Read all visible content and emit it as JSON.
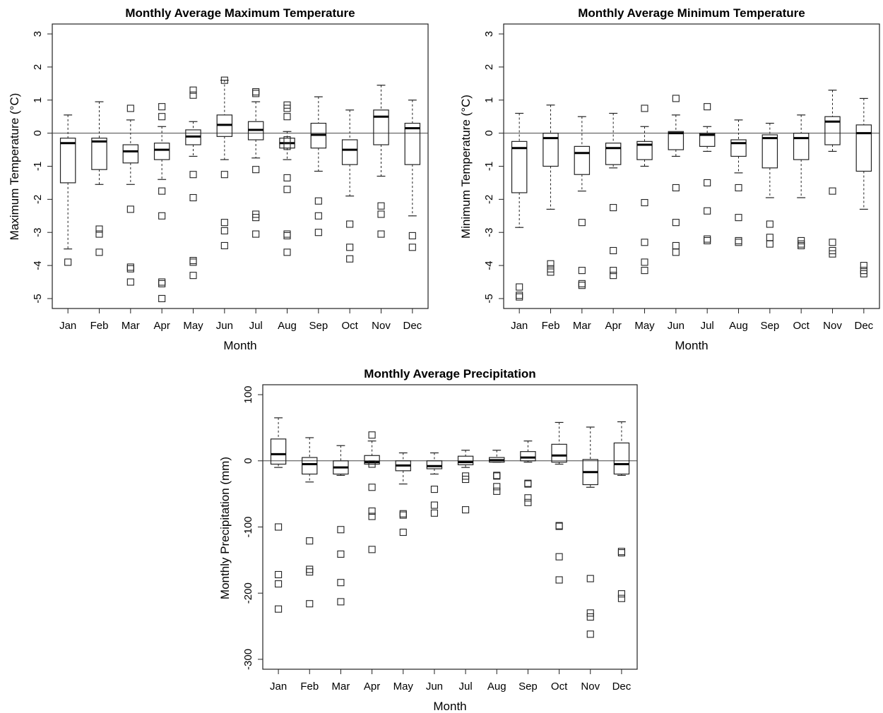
{
  "chart_data": [
    {
      "type": "boxplot",
      "title": "Monthly Average Maximum Temperature",
      "xlabel": "Month",
      "ylabel": "Maximum Temperature (°C)",
      "ylim": [
        -5.3,
        3.3
      ],
      "yticks": [
        3,
        2,
        1,
        0,
        -1,
        -2,
        -3,
        -4,
        -5
      ],
      "reference_line": 0,
      "categories": [
        "Jan",
        "Feb",
        "Mar",
        "Apr",
        "May",
        "Jun",
        "Jul",
        "Aug",
        "Sep",
        "Oct",
        "Nov",
        "Dec"
      ],
      "boxes": [
        {
          "low": -3.5,
          "q1": -1.5,
          "median": -0.3,
          "q3": -0.15,
          "high": 0.55,
          "outliers": [
            -3.9
          ]
        },
        {
          "low": -1.55,
          "q1": -1.1,
          "median": -0.25,
          "q3": -0.15,
          "high": 0.95,
          "outliers": [
            -2.9,
            -3.05,
            -3.6
          ]
        },
        {
          "low": -1.55,
          "q1": -0.9,
          "median": -0.55,
          "q3": -0.35,
          "high": 0.4,
          "outliers": [
            0.75,
            -2.3,
            -4.05,
            -4.1,
            -4.5
          ]
        },
        {
          "low": -1.4,
          "q1": -0.8,
          "median": -0.5,
          "q3": -0.3,
          "high": 0.2,
          "outliers": [
            0.8,
            0.5,
            -1.75,
            -2.5,
            -4.5,
            -4.55,
            -5.0
          ]
        },
        {
          "low": -0.7,
          "q1": -0.35,
          "median": -0.1,
          "q3": 0.1,
          "high": 0.35,
          "outliers": [
            1.3,
            1.15,
            -1.25,
            -1.95,
            -3.85,
            -3.9,
            -4.3
          ]
        },
        {
          "low": -0.8,
          "q1": -0.1,
          "median": 0.25,
          "q3": 0.55,
          "high": 1.6,
          "outliers": [
            1.6,
            -1.25,
            -2.7,
            -2.95,
            -3.4
          ]
        },
        {
          "low": -0.75,
          "q1": -0.2,
          "median": 0.1,
          "q3": 0.35,
          "high": 0.95,
          "outliers": [
            1.25,
            1.2,
            -1.1,
            -2.45,
            -2.55,
            -3.05
          ]
        },
        {
          "low": -0.8,
          "q1": -0.45,
          "median": -0.3,
          "q3": -0.15,
          "high": 0.05,
          "outliers": [
            0.85,
            0.75,
            0.5,
            -0.2,
            -0.4,
            -1.35,
            -1.7,
            -3.05,
            -3.1,
            -3.6
          ]
        },
        {
          "low": -1.15,
          "q1": -0.45,
          "median": -0.05,
          "q3": 0.3,
          "high": 1.1,
          "outliers": [
            -2.05,
            -2.5,
            -3.0
          ]
        },
        {
          "low": -1.9,
          "q1": -0.95,
          "median": -0.5,
          "q3": -0.2,
          "high": 0.7,
          "outliers": [
            -2.75,
            -3.45,
            -3.8
          ]
        },
        {
          "low": -1.3,
          "q1": -0.35,
          "median": 0.5,
          "q3": 0.7,
          "high": 1.45,
          "outliers": [
            -2.2,
            -2.45,
            -3.05
          ]
        },
        {
          "low": -2.5,
          "q1": -0.95,
          "median": 0.15,
          "q3": 0.3,
          "high": 1.0,
          "outliers": [
            -3.1,
            -3.45
          ]
        }
      ]
    },
    {
      "type": "boxplot",
      "title": "Monthly Average Minimum Temperature",
      "xlabel": "Month",
      "ylabel": "Minimum Temperature (°C)",
      "ylim": [
        -5.3,
        3.3
      ],
      "yticks": [
        3,
        2,
        1,
        0,
        -1,
        -2,
        -3,
        -4,
        -5
      ],
      "reference_line": 0,
      "categories": [
        "Jan",
        "Feb",
        "Mar",
        "Apr",
        "May",
        "Jun",
        "Jul",
        "Aug",
        "Sep",
        "Oct",
        "Nov",
        "Dec"
      ],
      "boxes": [
        {
          "low": -2.85,
          "q1": -1.8,
          "median": -0.45,
          "q3": -0.25,
          "high": 0.6,
          "outliers": [
            -4.65,
            -4.9,
            -4.95
          ]
        },
        {
          "low": -2.3,
          "q1": -1.0,
          "median": -0.15,
          "q3": 0.0,
          "high": 0.85,
          "outliers": [
            -3.95,
            -4.1,
            -4.2
          ]
        },
        {
          "low": -1.75,
          "q1": -1.25,
          "median": -0.6,
          "q3": -0.4,
          "high": 0.5,
          "outliers": [
            -2.7,
            -4.15,
            -4.55,
            -4.6
          ]
        },
        {
          "low": -1.05,
          "q1": -0.95,
          "median": -0.45,
          "q3": -0.3,
          "high": 0.6,
          "outliers": [
            -2.25,
            -3.55,
            -4.15,
            -4.3
          ]
        },
        {
          "low": -1.0,
          "q1": -0.8,
          "median": -0.35,
          "q3": -0.25,
          "high": 0.2,
          "outliers": [
            0.75,
            -2.1,
            -3.3,
            -3.9,
            -4.15
          ]
        },
        {
          "low": -0.7,
          "q1": -0.5,
          "median": 0.0,
          "q3": 0.05,
          "high": 0.55,
          "outliers": [
            1.05,
            -1.65,
            -2.7,
            -3.4,
            -3.6
          ]
        },
        {
          "low": -0.55,
          "q1": -0.4,
          "median": -0.05,
          "q3": 0.0,
          "high": 0.2,
          "outliers": [
            0.8,
            -1.5,
            -2.35,
            -3.2,
            -3.25
          ]
        },
        {
          "low": -1.2,
          "q1": -0.7,
          "median": -0.3,
          "q3": -0.2,
          "high": 0.4,
          "outliers": [
            -1.65,
            -2.55,
            -3.25,
            -3.3
          ]
        },
        {
          "low": -1.95,
          "q1": -1.05,
          "median": -0.15,
          "q3": -0.05,
          "high": 0.3,
          "outliers": [
            -2.75,
            -3.15,
            -3.35
          ]
        },
        {
          "low": -1.95,
          "q1": -0.8,
          "median": -0.15,
          "q3": 0.0,
          "high": 0.55,
          "outliers": [
            -3.25,
            -3.35,
            -3.4
          ]
        },
        {
          "low": -0.55,
          "q1": -0.35,
          "median": 0.35,
          "q3": 0.5,
          "high": 1.3,
          "outliers": [
            -1.75,
            -3.3,
            -3.55,
            -3.65
          ]
        },
        {
          "low": -2.3,
          "q1": -1.15,
          "median": 0.0,
          "q3": 0.25,
          "high": 1.05,
          "outliers": [
            -4.0,
            -4.15,
            -4.25
          ]
        }
      ]
    },
    {
      "type": "boxplot",
      "title": "Monthly Average Precipitation",
      "xlabel": "Month",
      "ylabel": "Monthly Precipitation (mm)",
      "ylim": [
        -315,
        115
      ],
      "yticks": [
        100,
        0,
        -100,
        -200,
        -300
      ],
      "reference_line": 0,
      "categories": [
        "Jan",
        "Feb",
        "Mar",
        "Apr",
        "May",
        "Jun",
        "Jul",
        "Aug",
        "Sep",
        "Oct",
        "Nov",
        "Dec"
      ],
      "boxes": [
        {
          "low": -10,
          "q1": -5,
          "median": 10,
          "q3": 33,
          "high": 65,
          "outliers": [
            -100,
            -172,
            -186,
            -224
          ]
        },
        {
          "low": -32,
          "q1": -20,
          "median": -5,
          "q3": 5,
          "high": 35,
          "outliers": [
            -121,
            -164,
            -168,
            -216
          ]
        },
        {
          "low": -22,
          "q1": -20,
          "median": -10,
          "q3": 0,
          "high": 23,
          "outliers": [
            -104,
            -141,
            -184,
            -213
          ]
        },
        {
          "low": -5,
          "q1": -5,
          "median": -2,
          "q3": 8,
          "high": 30,
          "outliers": [
            39,
            -5,
            -40,
            -76,
            -84,
            -134
          ]
        },
        {
          "low": -35,
          "q1": -15,
          "median": -7,
          "q3": 0,
          "high": 12,
          "outliers": [
            -80,
            -82,
            -108
          ]
        },
        {
          "low": -20,
          "q1": -12,
          "median": -8,
          "q3": 0,
          "high": 12,
          "outliers": [
            -43,
            -67,
            -79
          ]
        },
        {
          "low": -10,
          "q1": -6,
          "median": -2,
          "q3": 7,
          "high": 16,
          "outliers": [
            -23,
            -28,
            -74
          ]
        },
        {
          "low": -2,
          "q1": -2,
          "median": 1,
          "q3": 5,
          "high": 16,
          "outliers": [
            -22,
            -23,
            -39,
            -46
          ]
        },
        {
          "low": -2,
          "q1": 0,
          "median": 5,
          "q3": 14,
          "high": 30,
          "outliers": [
            -34,
            -35,
            -56,
            -63
          ]
        },
        {
          "low": -5,
          "q1": -2,
          "median": 8,
          "q3": 25,
          "high": 58,
          "outliers": [
            -98,
            -99,
            -145,
            -180
          ]
        },
        {
          "low": -40,
          "q1": -36,
          "median": -17,
          "q3": 2,
          "high": 51,
          "outliers": [
            -178,
            -230,
            -236,
            -262
          ]
        },
        {
          "low": -22,
          "q1": -20,
          "median": -5,
          "q3": 27,
          "high": 59,
          "outliers": [
            -137,
            -139,
            -201,
            -208
          ]
        }
      ]
    }
  ]
}
